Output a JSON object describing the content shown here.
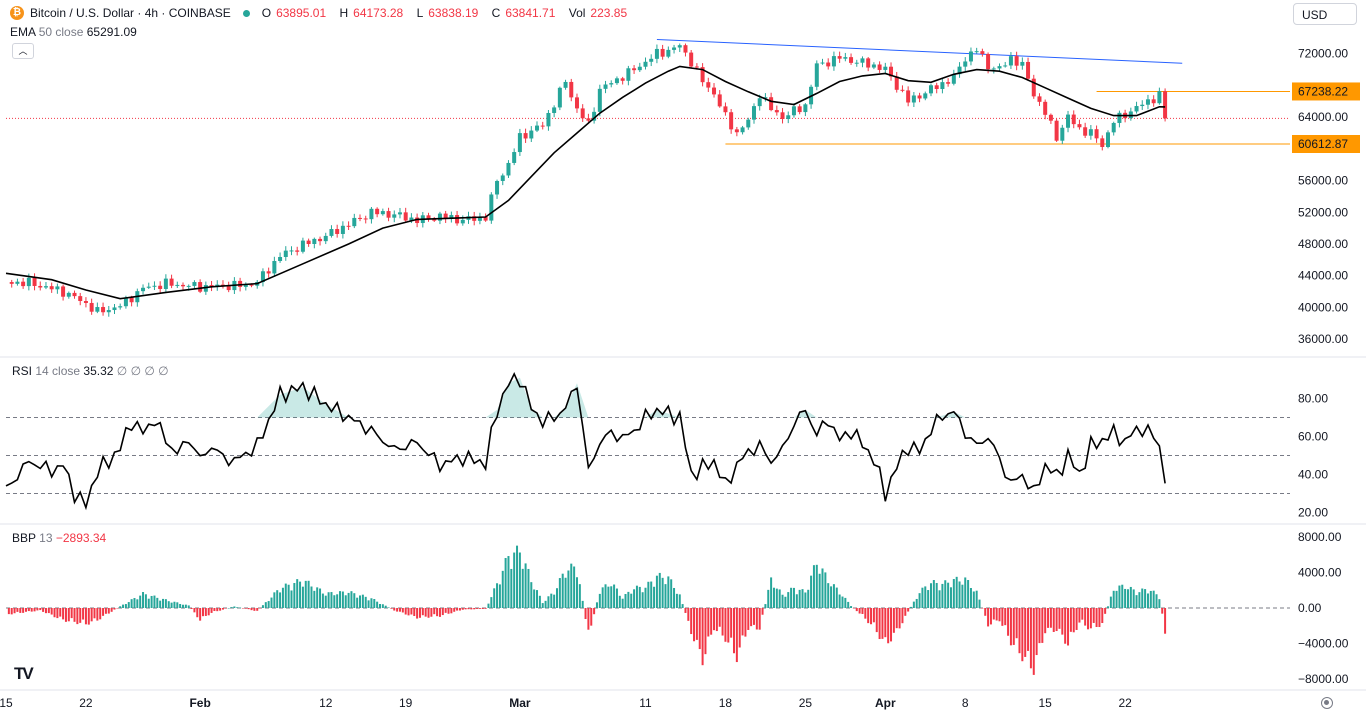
{
  "header": {
    "coin_glyph": "₿",
    "symbol": "Bitcoin / U.S. Dollar · 4h · COINBASE",
    "open_label": "O",
    "open": "63895.01",
    "high_label": "H",
    "high": "64173.28",
    "low_label": "L",
    "low": "63838.19",
    "close_label": "C",
    "close": "63841.71",
    "vol_label": "Vol",
    "volume": "223.85"
  },
  "ema": {
    "name": "EMA",
    "params": "50 close",
    "value": "65291.09"
  },
  "rsi": {
    "name": "RSI",
    "params": "14 close",
    "value": "35.32",
    "extras": "∅ ∅ ∅ ∅"
  },
  "bbp": {
    "name": "BBP",
    "params": "13",
    "value": "−2893.34"
  },
  "currency": "USD",
  "collapse_icon": "chevron-up-icon",
  "logo": "TV",
  "colors": {
    "up": "#26a69a",
    "down": "#f23645",
    "ema": "#000000",
    "trend": "#2962ff",
    "level": "#ff9800",
    "level_label_bg": "#ff9800",
    "last_price": "#f23645"
  },
  "chart_data": {
    "type": "candlestick",
    "title": "Bitcoin / U.S. Dollar · 4h · COINBASE",
    "price_axis": {
      "ylim": [
        34000,
        76000
      ],
      "ticks": [
        36000,
        40000,
        44000,
        48000,
        52000,
        56000,
        60000,
        64000,
        68000,
        72000
      ],
      "tick_labels": [
        "36000.00",
        "40000.00",
        "44000.00",
        "48000.00",
        "52000.00",
        "56000.00",
        "60000.00",
        "64000.00",
        "",
        "72000.00"
      ]
    },
    "x_axis": {
      "ticks": [
        "15",
        "22",
        "Feb",
        "12",
        "19",
        "Mar",
        "11",
        "18",
        "25",
        "Apr",
        "8",
        "15",
        "22"
      ],
      "tick_days": [
        0,
        7,
        17,
        28,
        35,
        45,
        56,
        63,
        70,
        77,
        84,
        91,
        98
      ],
      "xlim_days": [
        0,
        112
      ],
      "last_day": 101.5
    },
    "price_path": [
      [
        0,
        43200
      ],
      [
        2,
        43100
      ],
      [
        5,
        42000
      ],
      [
        7,
        40500
      ],
      [
        8,
        39400
      ],
      [
        10,
        40200
      ],
      [
        12,
        42400
      ],
      [
        14,
        43000
      ],
      [
        17,
        42600
      ],
      [
        21,
        42800
      ],
      [
        22,
        43200
      ],
      [
        24,
        46500
      ],
      [
        26,
        47900
      ],
      [
        28,
        49000
      ],
      [
        30,
        50500
      ],
      [
        32,
        52000
      ],
      [
        34,
        51700
      ],
      [
        36,
        51000
      ],
      [
        38,
        51500
      ],
      [
        40,
        51000
      ],
      [
        42,
        51400
      ],
      [
        43,
        56000
      ],
      [
        44,
        58000
      ],
      [
        45,
        61500
      ],
      [
        47,
        63000
      ],
      [
        49,
        68500
      ],
      [
        50,
        65000
      ],
      [
        51,
        63000
      ],
      [
        52,
        67500
      ],
      [
        55,
        70000
      ],
      [
        57,
        72000
      ],
      [
        58,
        72400
      ],
      [
        59,
        73000
      ],
      [
        60,
        71000
      ],
      [
        61,
        68500
      ],
      [
        62,
        67000
      ],
      [
        63,
        64000
      ],
      [
        64,
        62000
      ],
      [
        65,
        63500
      ],
      [
        66,
        67000
      ],
      [
        67,
        65000
      ],
      [
        68,
        64000
      ],
      [
        70,
        65500
      ],
      [
        71,
        70500
      ],
      [
        73,
        71500
      ],
      [
        76,
        70500
      ],
      [
        77,
        70000
      ],
      [
        78,
        68000
      ],
      [
        79,
        66000
      ],
      [
        81,
        67500
      ],
      [
        83,
        69000
      ],
      [
        84,
        71500
      ],
      [
        85,
        72500
      ],
      [
        86,
        70500
      ],
      [
        87,
        70000
      ],
      [
        88,
        71500
      ],
      [
        89,
        70500
      ],
      [
        90,
        67000
      ],
      [
        91,
        64500
      ],
      [
        92,
        61500
      ],
      [
        93,
        64000
      ],
      [
        94,
        62500
      ],
      [
        95,
        62000
      ],
      [
        96,
        60500
      ],
      [
        97,
        63500
      ],
      [
        99,
        65200
      ],
      [
        100,
        66000
      ],
      [
        101,
        66800
      ],
      [
        101.5,
        63800
      ]
    ],
    "ema_50": [
      [
        0,
        44300
      ],
      [
        4,
        43500
      ],
      [
        7,
        42200
      ],
      [
        10,
        41100
      ],
      [
        14,
        41900
      ],
      [
        18,
        42600
      ],
      [
        22,
        43000
      ],
      [
        26,
        45500
      ],
      [
        30,
        48000
      ],
      [
        33,
        50000
      ],
      [
        36,
        51100
      ],
      [
        40,
        51300
      ],
      [
        42,
        51400
      ],
      [
        44,
        53500
      ],
      [
        46,
        56500
      ],
      [
        48,
        59500
      ],
      [
        50,
        62000
      ],
      [
        52,
        64500
      ],
      [
        54,
        66500
      ],
      [
        56,
        68300
      ],
      [
        58,
        69800
      ],
      [
        59,
        70400
      ],
      [
        61,
        70000
      ],
      [
        63,
        68500
      ],
      [
        65,
        67200
      ],
      [
        67,
        66000
      ],
      [
        69,
        65600
      ],
      [
        71,
        67000
      ],
      [
        73,
        68500
      ],
      [
        75,
        69200
      ],
      [
        77,
        69500
      ],
      [
        79,
        68600
      ],
      [
        81,
        68400
      ],
      [
        83,
        69400
      ],
      [
        85,
        70000
      ],
      [
        87,
        69800
      ],
      [
        89,
        69000
      ],
      [
        91,
        67700
      ],
      [
        93,
        66400
      ],
      [
        95,
        65100
      ],
      [
        97,
        64200
      ],
      [
        99,
        64200
      ],
      [
        101,
        65300
      ],
      [
        101.5,
        65291
      ]
    ],
    "trendline": [
      [
        57,
        73800
      ],
      [
        103,
        70800
      ]
    ],
    "resistance": {
      "value": "67238.22",
      "from_day": 95.5,
      "to_day": 101.5,
      "y": 67238.22
    },
    "support": {
      "value": "60612.87",
      "from_day": 63,
      "to_day": 101.5,
      "y": 60612.87
    },
    "last_price": 63841.71,
    "rsi_axis": {
      "ylim": [
        15,
        95
      ],
      "ticks": [
        20,
        40,
        60,
        80
      ],
      "tick_labels": [
        "20.00",
        "40.00",
        "60.00",
        "80.00"
      ],
      "bands": [
        30,
        50,
        70
      ]
    },
    "rsi_path": [
      [
        0,
        32
      ],
      [
        2,
        47
      ],
      [
        4,
        42
      ],
      [
        5,
        45
      ],
      [
        6,
        30
      ],
      [
        7,
        24
      ],
      [
        8,
        42
      ],
      [
        9,
        47
      ],
      [
        10,
        54
      ],
      [
        11,
        68
      ],
      [
        12,
        62
      ],
      [
        13,
        69
      ],
      [
        14,
        58
      ],
      [
        15,
        51
      ],
      [
        16,
        59
      ],
      [
        17,
        48
      ],
      [
        18,
        55
      ],
      [
        19,
        49
      ],
      [
        20,
        47
      ],
      [
        22,
        55
      ],
      [
        24,
        82
      ],
      [
        26,
        86
      ],
      [
        28,
        77
      ],
      [
        30,
        70
      ],
      [
        32,
        63
      ],
      [
        34,
        53
      ],
      [
        36,
        57
      ],
      [
        38,
        45
      ],
      [
        40,
        49
      ],
      [
        42,
        46
      ],
      [
        43,
        74
      ],
      [
        44,
        88
      ],
      [
        45,
        91
      ],
      [
        46,
        75
      ],
      [
        47,
        68
      ],
      [
        48,
        70
      ],
      [
        49,
        75
      ],
      [
        50,
        88
      ],
      [
        51,
        42
      ],
      [
        52,
        57
      ],
      [
        53,
        62
      ],
      [
        54,
        59
      ],
      [
        55,
        63
      ],
      [
        56,
        70
      ],
      [
        57,
        74
      ],
      [
        59,
        70
      ],
      [
        60,
        40
      ],
      [
        62,
        47
      ],
      [
        63,
        34
      ],
      [
        64,
        45
      ],
      [
        65,
        52
      ],
      [
        66,
        55
      ],
      [
        67,
        47
      ],
      [
        68,
        53
      ],
      [
        69,
        67
      ],
      [
        70,
        74
      ],
      [
        71,
        61
      ],
      [
        72,
        69
      ],
      [
        73,
        58
      ],
      [
        74,
        63
      ],
      [
        75,
        56
      ],
      [
        76,
        48
      ],
      [
        77,
        30
      ],
      [
        78,
        44
      ],
      [
        79,
        55
      ],
      [
        80,
        52
      ],
      [
        81,
        64
      ],
      [
        82,
        71
      ],
      [
        83,
        73
      ],
      [
        84,
        62
      ],
      [
        85,
        55
      ],
      [
        86,
        60
      ],
      [
        87,
        48
      ],
      [
        88,
        35
      ],
      [
        89,
        40
      ],
      [
        90,
        30
      ],
      [
        91,
        45
      ],
      [
        92,
        39
      ],
      [
        93,
        50
      ],
      [
        94,
        40
      ],
      [
        95,
        55
      ],
      [
        96,
        58
      ],
      [
        97,
        62
      ],
      [
        98,
        57
      ],
      [
        99,
        64
      ],
      [
        100,
        63
      ],
      [
        101,
        56
      ],
      [
        101.5,
        35.32
      ]
    ],
    "bbp_axis": {
      "ylim": [
        -9000,
        9000
      ],
      "ticks": [
        -8000,
        -4000,
        0,
        4000,
        8000
      ],
      "tick_labels": [
        "−8000.00",
        "−4000.00",
        "0.00",
        "4000.00",
        "8000.00"
      ]
    },
    "bbp_path": [
      [
        0,
        -800
      ],
      [
        3,
        -300
      ],
      [
        5,
        -1500
      ],
      [
        7,
        -2000
      ],
      [
        8,
        -1500
      ],
      [
        10,
        200
      ],
      [
        12,
        1800
      ],
      [
        14,
        1000
      ],
      [
        16,
        300
      ],
      [
        17,
        -1500
      ],
      [
        18,
        -600
      ],
      [
        20,
        200
      ],
      [
        22,
        -400
      ],
      [
        24,
        2500
      ],
      [
        26,
        3500
      ],
      [
        28,
        1800
      ],
      [
        30,
        2000
      ],
      [
        32,
        1200
      ],
      [
        34,
        -300
      ],
      [
        36,
        -1200
      ],
      [
        38,
        -1000
      ],
      [
        40,
        -200
      ],
      [
        42,
        -100
      ],
      [
        43,
        3000
      ],
      [
        44,
        6500
      ],
      [
        45,
        7200
      ],
      [
        46,
        3500
      ],
      [
        47,
        700
      ],
      [
        48,
        2000
      ],
      [
        49,
        4800
      ],
      [
        50,
        5200
      ],
      [
        51,
        -3600
      ],
      [
        52,
        2200
      ],
      [
        53,
        3200
      ],
      [
        54,
        1300
      ],
      [
        55,
        2500
      ],
      [
        56,
        2600
      ],
      [
        57,
        4000
      ],
      [
        58,
        3800
      ],
      [
        59,
        1600
      ],
      [
        60,
        -3000
      ],
      [
        61,
        -6500
      ],
      [
        62,
        -2500
      ],
      [
        63,
        -3800
      ],
      [
        64,
        -6100
      ],
      [
        65,
        -2500
      ],
      [
        66,
        -2500
      ],
      [
        67,
        3600
      ],
      [
        68,
        1600
      ],
      [
        69,
        2500
      ],
      [
        70,
        2000
      ],
      [
        71,
        5800
      ],
      [
        72,
        3500
      ],
      [
        73,
        2000
      ],
      [
        74,
        300
      ],
      [
        75,
        -1000
      ],
      [
        76,
        -2400
      ],
      [
        77,
        -4600
      ],
      [
        78,
        -3000
      ],
      [
        79,
        -500
      ],
      [
        80,
        2000
      ],
      [
        81,
        3200
      ],
      [
        82,
        3000
      ],
      [
        83,
        3500
      ],
      [
        84,
        3600
      ],
      [
        85,
        2000
      ],
      [
        86,
        -2100
      ],
      [
        87,
        -1500
      ],
      [
        88,
        -4200
      ],
      [
        89,
        -6000
      ],
      [
        90,
        -7600
      ],
      [
        91,
        -2900
      ],
      [
        92,
        -2700
      ],
      [
        93,
        -4500
      ],
      [
        94,
        -1800
      ],
      [
        95,
        -2600
      ],
      [
        96,
        -2000
      ],
      [
        97,
        2400
      ],
      [
        98,
        2800
      ],
      [
        99,
        2000
      ],
      [
        100,
        2400
      ],
      [
        101,
        1500
      ],
      [
        101.5,
        -2893
      ]
    ]
  }
}
